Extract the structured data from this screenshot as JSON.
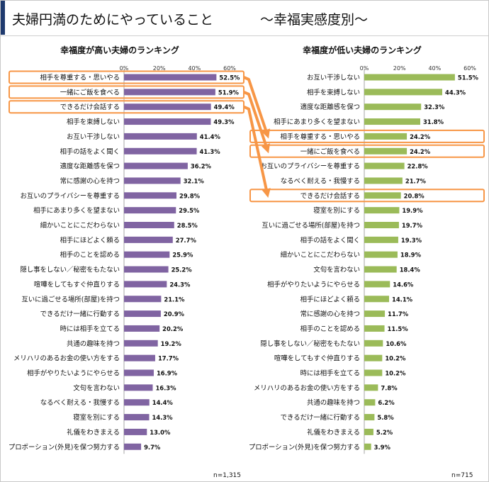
{
  "page": {
    "title": "夫婦円満のためにやっていること",
    "subtitle": "～幸福実感度別～"
  },
  "colors": {
    "high_bar": "#8064a2",
    "low_bar": "#9bbb59",
    "highlight": "#f79646",
    "title_accent": "#1f3a6e"
  },
  "chart_data": [
    {
      "type": "bar",
      "orientation": "horizontal",
      "title": "幸福度が高い夫婦のランキング",
      "n_label": "n=1,315",
      "xlim": [
        0,
        60
      ],
      "ticks": [
        "0%",
        "20%",
        "40%",
        "60%"
      ],
      "categories": [
        "相手を尊重する・思いやる",
        "一緒にご飯を食べる",
        "できるだけ会話する",
        "相手を束縛しない",
        "お互い干渉しない",
        "相手の話をよく聞く",
        "適度な距離感を保つ",
        "常に感謝の心を持つ",
        "お互いのプライバシーを尊重する",
        "相手にあまり多くを望まない",
        "細かいことにこだわらない",
        "相手にほどよく頼る",
        "相手のことを認める",
        "隠し事をしない／秘密をもたない",
        "喧嘩をしてもすぐ仲直りする",
        "互いに過ごせる場所(部屋)を持つ",
        "できるだけ一緒に行動する",
        "時には相手を立てる",
        "共通の趣味を持つ",
        "メリハリのあるお金の使い方をする",
        "相手がやりたいようにやらせる",
        "文句を言わない",
        "なるべく耐える・我慢する",
        "寝室を別にする",
        "礼儀をわきまえる",
        "プロポーション(外見)を保つ努力する"
      ],
      "values": [
        52.5,
        51.9,
        49.4,
        49.3,
        41.4,
        41.3,
        36.2,
        32.1,
        29.8,
        29.5,
        28.5,
        27.7,
        25.9,
        25.2,
        24.3,
        21.1,
        20.9,
        20.2,
        19.2,
        17.7,
        16.9,
        16.3,
        14.4,
        14.3,
        13.0,
        9.7
      ],
      "value_labels": [
        "52.5%",
        "51.9%",
        "49.4%",
        "49.3%",
        "41.4%",
        "41.3%",
        "36.2%",
        "32.1%",
        "29.8%",
        "29.5%",
        "28.5%",
        "27.7%",
        "25.9%",
        "25.2%",
        "24.3%",
        "21.1%",
        "20.9%",
        "20.2%",
        "19.2%",
        "17.7%",
        "16.9%",
        "16.3%",
        "14.4%",
        "14.3%",
        "13.0%",
        "9.7%"
      ],
      "highlighted": [
        0,
        1,
        2
      ]
    },
    {
      "type": "bar",
      "orientation": "horizontal",
      "title": "幸福度が低い夫婦のランキング",
      "n_label": "n=715",
      "xlim": [
        0,
        60
      ],
      "ticks": [
        "0%",
        "20%",
        "40%",
        "60%"
      ],
      "categories": [
        "お互い干渉しない",
        "相手を束縛しない",
        "適度な距離感を保つ",
        "相手にあまり多くを望まない",
        "相手を尊重する・思いやる",
        "一緒にご飯を食べる",
        "お互いのプライバシーを尊重する",
        "なるべく耐える・我慢する",
        "できるだけ会話する",
        "寝室を別にする",
        "互いに過ごせる場所(部屋)を持つ",
        "相手の話をよく聞く",
        "細かいことにこだわらない",
        "文句を言わない",
        "相手がやりたいようにやらせる",
        "相手にほどよく頼る",
        "常に感謝の心を持つ",
        "相手のことを認める",
        "隠し事をしない／秘密をもたない",
        "喧嘩をしてもすぐ仲直りする",
        "時には相手を立てる",
        "メリハリのあるお金の使い方をする",
        "共通の趣味を持つ",
        "できるだけ一緒に行動する",
        "礼儀をわきまえる",
        "プロポーション(外見)を保つ努力する"
      ],
      "values": [
        51.5,
        44.3,
        32.3,
        31.8,
        24.2,
        24.2,
        22.8,
        21.7,
        20.8,
        19.9,
        19.7,
        19.3,
        18.9,
        18.4,
        14.6,
        14.1,
        11.7,
        11.5,
        10.6,
        10.2,
        10.2,
        7.8,
        6.2,
        5.8,
        5.2,
        3.9
      ],
      "value_labels": [
        "51.5%",
        "44.3%",
        "32.3%",
        "31.8%",
        "24.2%",
        "24.2%",
        "22.8%",
        "21.7%",
        "20.8%",
        "19.9%",
        "19.7%",
        "19.3%",
        "18.9%",
        "18.4%",
        "14.6%",
        "14.1%",
        "11.7%",
        "11.5%",
        "10.6%",
        "10.2%",
        "10.2%",
        "7.8%",
        "6.2%",
        "5.8%",
        "5.2%",
        "3.9%"
      ],
      "highlighted": [
        4,
        5,
        8
      ]
    }
  ],
  "connections": [
    {
      "from": 0,
      "to": 4
    },
    {
      "from": 1,
      "to": 5
    },
    {
      "from": 2,
      "to": 8
    }
  ]
}
